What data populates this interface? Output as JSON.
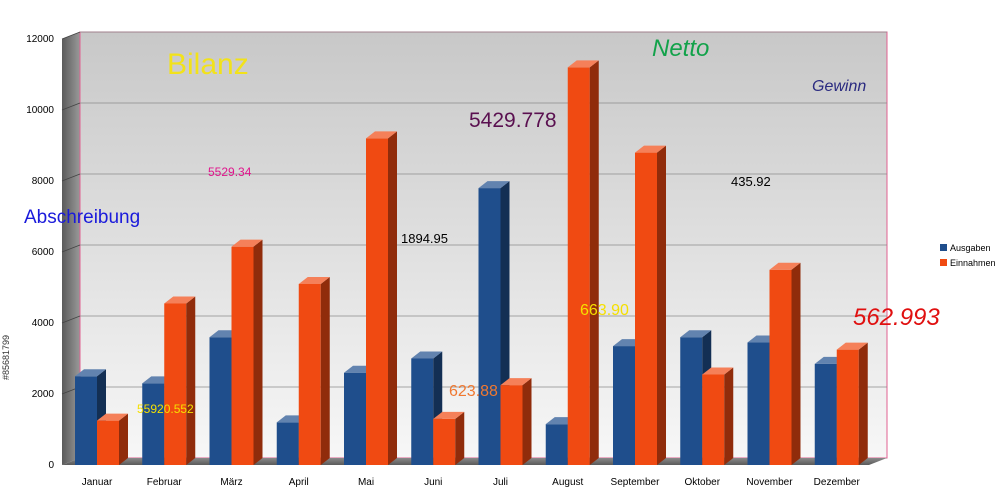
{
  "chart_data": {
    "type": "bar",
    "categories": [
      "Januar",
      "Februar",
      "März",
      "April",
      "Mai",
      "Juni",
      "Juli",
      "August",
      "September",
      "Oktober",
      "November",
      "Dezember"
    ],
    "series": [
      {
        "name": "Ausgaben",
        "color": "#1f4e8c",
        "values": [
          2500,
          2300,
          3600,
          1200,
          2600,
          3000,
          7800,
          1150,
          3350,
          3600,
          3450,
          2850
        ]
      },
      {
        "name": "Einnahmen",
        "color": "#f04a12",
        "values": [
          1250,
          4550,
          6150,
          5100,
          9200,
          1300,
          2250,
          11200,
          8800,
          2550,
          5500,
          3250
        ]
      }
    ],
    "ylim": [
      0,
      12000
    ],
    "yticks": [
      0,
      2000,
      4000,
      6000,
      8000,
      10000,
      12000
    ],
    "grid": true,
    "legend_position": "right",
    "annotations": [
      {
        "text": "Bilanz",
        "color": "#f2e21a"
      },
      {
        "text": "Netto",
        "color": "#12a24a"
      },
      {
        "text": "Gewinn",
        "color": "#2a2a80"
      },
      {
        "text": "Abschreibung",
        "color": "#1a1adb"
      },
      {
        "text": "5529.34",
        "color": "#e0148c"
      },
      {
        "text": "5429.778",
        "color": "#5a1050"
      },
      {
        "text": "1894.95",
        "color": "#000000"
      },
      {
        "text": "435.92",
        "color": "#000000"
      },
      {
        "text": "663.90",
        "color": "#f5e000"
      },
      {
        "text": "623.88",
        "color": "#f07830"
      },
      {
        "text": "55920.552",
        "color": "#f5e000"
      },
      {
        "text": "562.993",
        "color": "#e01010"
      }
    ]
  },
  "credit": "#85681799"
}
